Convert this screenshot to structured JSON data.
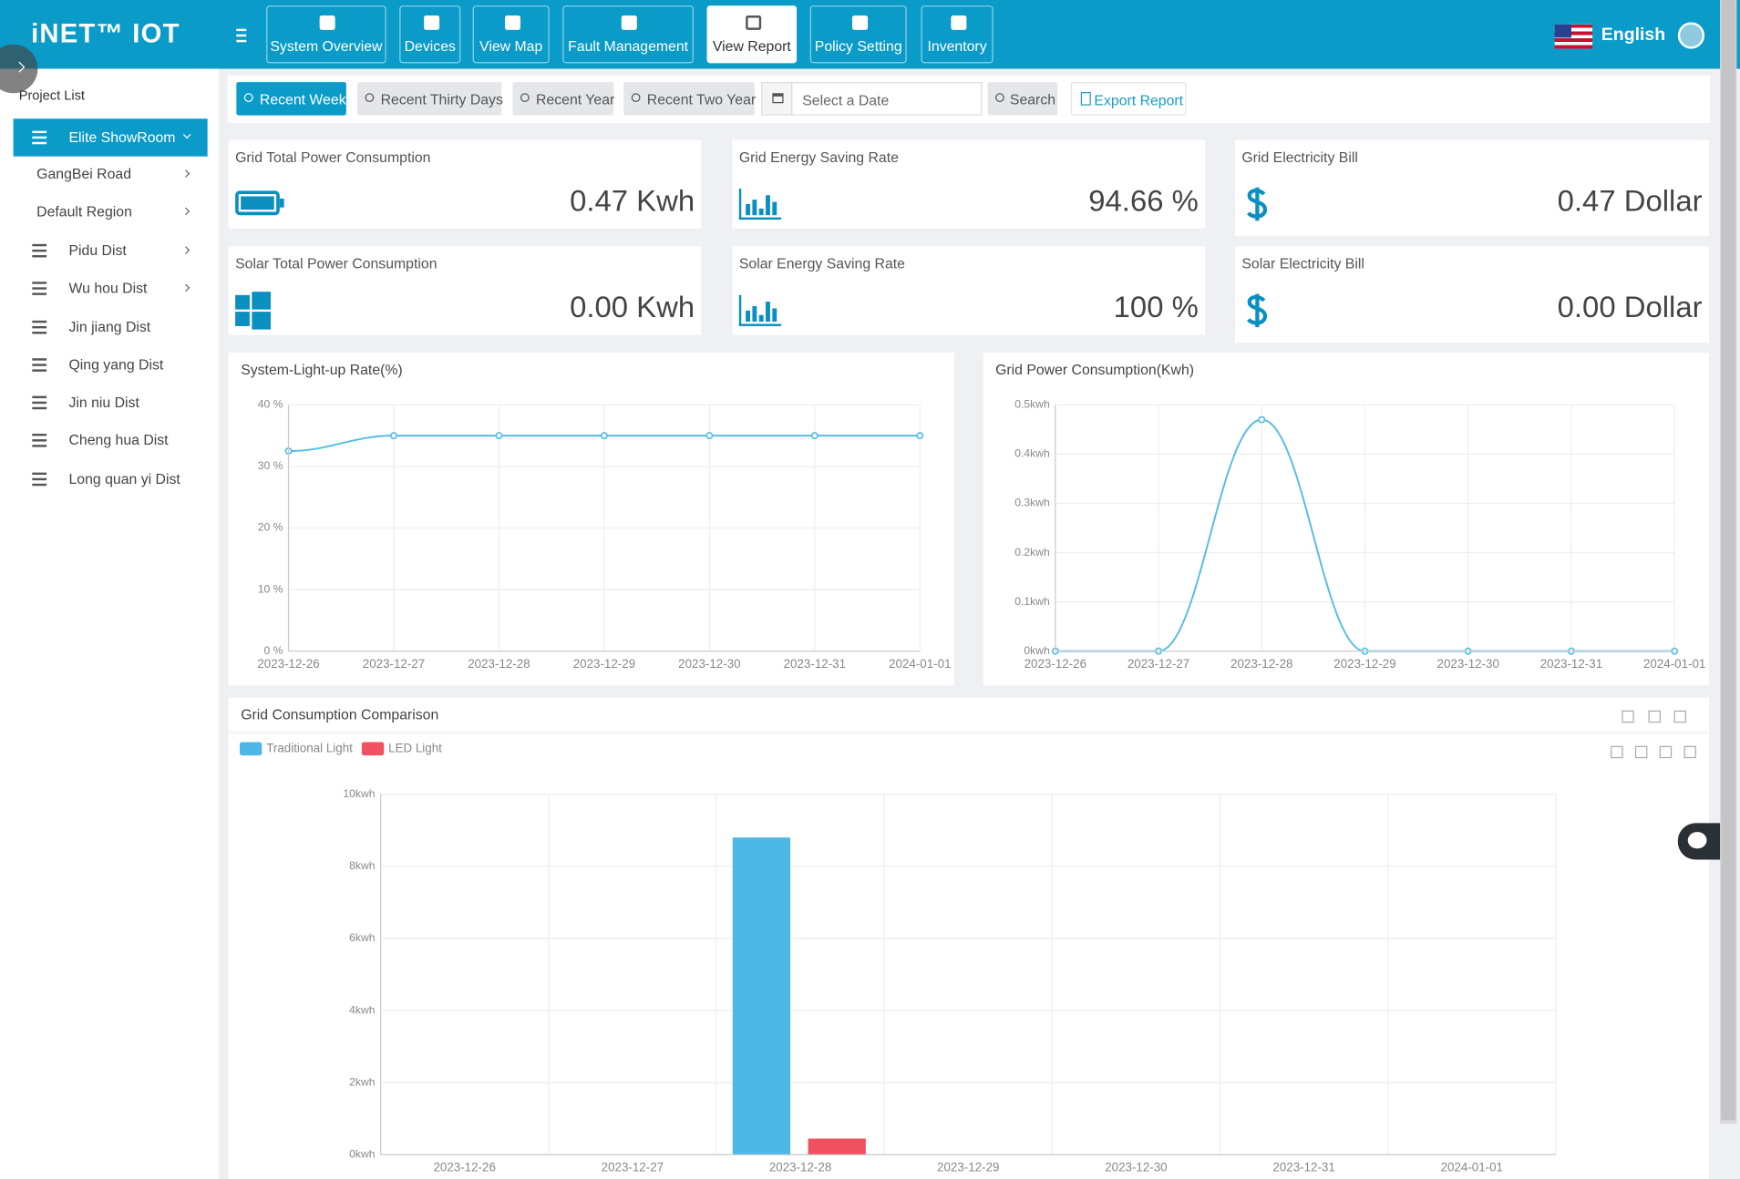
{
  "header": {
    "logo": "iNET™ IOT",
    "nav": [
      "System Overview",
      "Devices",
      "View Map",
      "Fault Management",
      "View Report",
      "Policy Setting",
      "Inventory"
    ],
    "language": "English"
  },
  "sidebar": {
    "title": "Project List",
    "items": [
      "Elite ShowRoom",
      "GangBei Road",
      "Default Region",
      "Pidu Dist",
      "Wu hou Dist",
      "Jin jiang Dist",
      "Qing yang Dist",
      "Jin niu Dist",
      "Cheng hua Dist",
      "Long quan yi Dist"
    ]
  },
  "toolbar": {
    "buttons": [
      "Recent Week",
      "Recent Thirty Days",
      "Recent Year",
      "Recent Two Year"
    ],
    "date_placeholder": "Select a Date",
    "search": "Search",
    "export": "Export Report"
  },
  "cards": [
    {
      "title": "Grid Total Power Consumption",
      "value": "0.47 Kwh"
    },
    {
      "title": "Grid Energy Saving Rate",
      "value": "94.66 %"
    },
    {
      "title": "Grid Electricity Bill",
      "value": "0.47 Dollar"
    },
    {
      "title": "Solar Total Power Consumption",
      "value": "0.00 Kwh"
    },
    {
      "title": "Solar Energy Saving Rate",
      "value": "100 %"
    },
    {
      "title": "Solar Electricity Bill",
      "value": "0.00 Dollar"
    }
  ],
  "chart_data": [
    {
      "type": "line",
      "title": "System-Light-up Rate(%)",
      "smooth": true,
      "color": "#56bde3",
      "grid": true,
      "categories": [
        "2023-12-26",
        "2023-12-27",
        "2023-12-28",
        "2023-12-29",
        "2023-12-30",
        "2023-12-31",
        "2024-01-01"
      ],
      "values": [
        32.5,
        35,
        35,
        35,
        35,
        35,
        35
      ],
      "ylim": [
        0,
        40
      ],
      "yticks": [
        {
          "value": 0,
          "label": "0 %"
        },
        {
          "value": 10,
          "label": "10 %"
        },
        {
          "value": 20,
          "label": "20 %"
        },
        {
          "value": 30,
          "label": "30 %"
        },
        {
          "value": 40,
          "label": "40 %"
        }
      ]
    },
    {
      "type": "line",
      "title": "Grid Power Consumption(Kwh)",
      "smooth": true,
      "color": "#56bde3",
      "grid": true,
      "categories": [
        "2023-12-26",
        "2023-12-27",
        "2023-12-28",
        "2023-12-29",
        "2023-12-30",
        "2023-12-31",
        "2024-01-01"
      ],
      "values": [
        0,
        0,
        0.47,
        0,
        0,
        0,
        0
      ],
      "ylim": [
        0,
        0.5
      ],
      "yticks": [
        {
          "value": 0,
          "label": "0kwh"
        },
        {
          "value": 0.1,
          "label": "0.1kwh"
        },
        {
          "value": 0.2,
          "label": "0.2kwh"
        },
        {
          "value": 0.3,
          "label": "0.3kwh"
        },
        {
          "value": 0.4,
          "label": "0.4kwh"
        },
        {
          "value": 0.5,
          "label": "0.5kwh"
        }
      ]
    },
    {
      "type": "bar",
      "title": "Grid Consumption Comparison",
      "grid": true,
      "categories": [
        "2023-12-26",
        "2023-12-27",
        "2023-12-28",
        "2023-12-29",
        "2023-12-30",
        "2023-12-31",
        "2024-01-01"
      ],
      "series": [
        {
          "name": "Traditional Light",
          "color": "#4db8e8",
          "values": [
            0,
            0,
            8.8,
            0,
            0,
            0,
            0
          ]
        },
        {
          "name": "LED Light",
          "color": "#f0505f",
          "values": [
            0,
            0,
            0.45,
            0,
            0,
            0,
            0
          ]
        }
      ],
      "ylim": [
        0,
        10
      ],
      "yticks": [
        {
          "value": 0,
          "label": "0kwh"
        },
        {
          "value": 2,
          "label": "2kwh"
        },
        {
          "value": 4,
          "label": "4kwh"
        },
        {
          "value": 6,
          "label": "6kwh"
        },
        {
          "value": 8,
          "label": "8kwh"
        },
        {
          "value": 10,
          "label": "10kwh"
        }
      ]
    }
  ]
}
